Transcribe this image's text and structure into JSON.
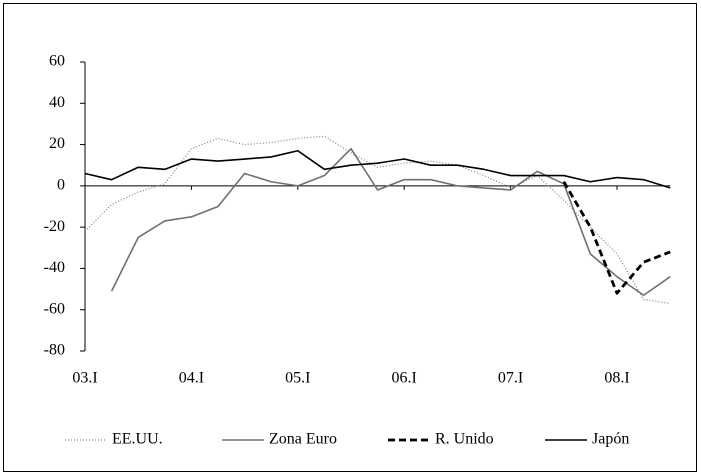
{
  "chart_data": {
    "type": "line",
    "categories": [
      "03.I",
      null,
      null,
      null,
      "04.I",
      null,
      null,
      null,
      "05.I",
      null,
      null,
      null,
      "06.I",
      null,
      null,
      null,
      "07.I",
      null,
      null,
      null,
      "08.I",
      null,
      null
    ],
    "series": [
      {
        "name": "EE.UU.",
        "color": "#808080",
        "style": "dotted",
        "values": [
          -22,
          -9,
          -3,
          1,
          18,
          23,
          20,
          21,
          23,
          24,
          16,
          9,
          11,
          12,
          10,
          5,
          -1,
          5,
          -7,
          -20,
          -33,
          -55,
          -57
        ]
      },
      {
        "name": "Zona Euro",
        "color": "#707070",
        "style": "solid",
        "values": [
          null,
          -51,
          -25,
          -17,
          -15,
          -10,
          6,
          2,
          0,
          5,
          18,
          -2,
          3,
          3,
          0,
          -1,
          -2,
          7,
          1,
          -33,
          -44,
          -53,
          -44
        ]
      },
      {
        "name": "R. Unido",
        "color": "#000000",
        "style": "dashed",
        "values": [
          null,
          null,
          null,
          null,
          null,
          null,
          null,
          null,
          null,
          null,
          null,
          null,
          null,
          null,
          null,
          null,
          null,
          null,
          2,
          -20,
          -52,
          -37,
          -32
        ]
      },
      {
        "name": "Japón",
        "color": "#000000",
        "style": "solid",
        "values": [
          6,
          3,
          9,
          8,
          13,
          12,
          13,
          14,
          17,
          8,
          10,
          11,
          13,
          10,
          10,
          8,
          5,
          5,
          5,
          2,
          4,
          3,
          -1
        ]
      }
    ],
    "ylim": [
      -80,
      60
    ],
    "yticks": [
      -80,
      -60,
      -40,
      -20,
      0,
      20,
      40,
      60
    ],
    "legend": "bottom"
  }
}
